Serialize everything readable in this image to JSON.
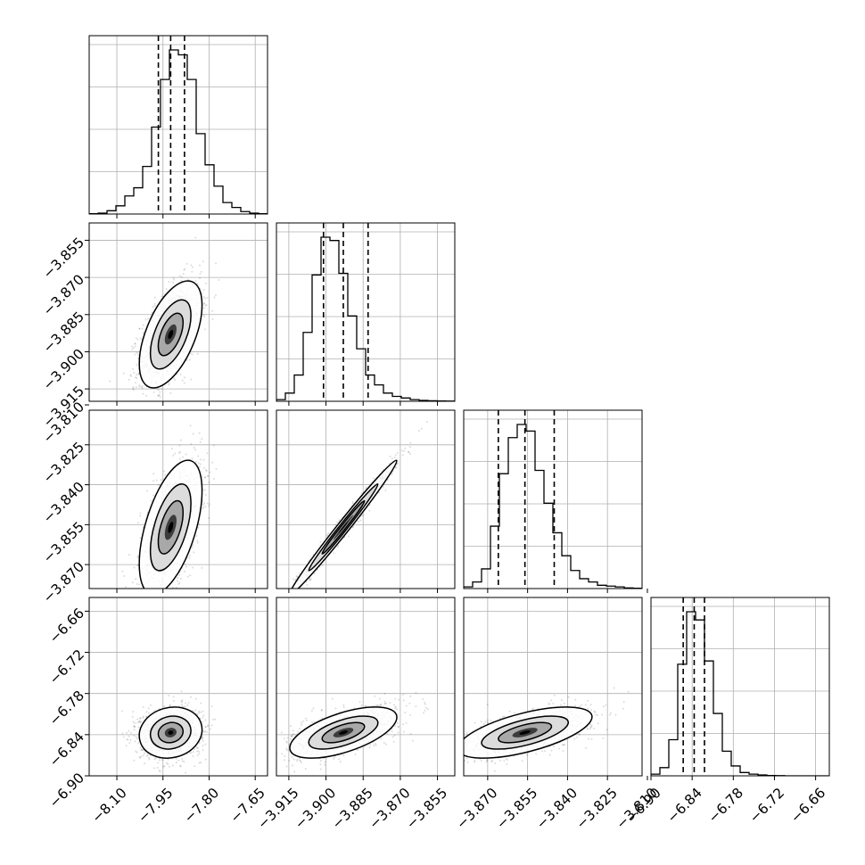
{
  "chart_data": {
    "type": "corner",
    "parameters": [
      {
        "ticks": [
          -8.1,
          -7.95,
          -7.8,
          -7.65
        ],
        "tick_labels": [
          "−8.10",
          "−7.95",
          "−7.80",
          "−7.65"
        ],
        "range": [
          -8.19,
          -7.61
        ]
      },
      {
        "ticks": [
          -3.915,
          -3.9,
          -3.885,
          -3.87,
          -3.855
        ],
        "tick_labels": [
          "−3.915",
          "−3.900",
          "−3.885",
          "−3.870",
          "−3.855"
        ],
        "range": [
          -3.92,
          -3.848
        ]
      },
      {
        "ticks": [
          -3.87,
          -3.855,
          -3.84,
          -3.825,
          -3.81
        ],
        "tick_labels": [
          "−3.870",
          "−3.855",
          "−3.840",
          "−3.825",
          "−3.810"
        ],
        "range": [
          -3.879,
          -3.812
        ]
      },
      {
        "ticks": [
          -6.9,
          -6.84,
          -6.78,
          -6.72,
          -6.66
        ],
        "tick_labels": [
          "−6.90",
          "−6.84",
          "−6.78",
          "−6.72",
          "−6.66"
        ],
        "range": [
          -6.9,
          -6.64
        ]
      }
    ],
    "quantiles": [
      [
        -7.965,
        -7.925,
        -7.88
      ],
      [
        -3.901,
        -3.893,
        -3.883
      ],
      [
        -3.866,
        -3.856,
        -3.845
      ],
      [
        -6.853,
        -6.837,
        -6.822
      ]
    ],
    "histograms": [
      [
        0.2,
        0.5,
        2,
        5,
        11,
        16,
        29,
        53,
        82,
        100,
        97,
        82,
        49,
        30,
        17,
        7,
        4,
        1.5,
        0.5,
        0.2
      ],
      [
        1,
        5,
        16,
        42,
        77,
        100,
        98,
        78,
        52,
        32,
        16,
        10,
        5,
        3,
        2,
        1,
        0.5,
        0.3,
        0.2,
        0.1
      ],
      [
        1,
        4,
        12,
        38,
        70,
        92,
        100,
        96,
        72,
        52,
        34,
        20,
        11,
        6,
        4,
        2,
        1.5,
        1,
        0.4,
        0.2
      ],
      [
        1,
        5,
        22,
        68,
        100,
        95,
        70,
        38,
        15,
        6,
        2,
        1,
        0.5,
        0.2,
        0.1,
        0,
        0,
        0,
        0,
        0
      ]
    ],
    "correlations": [
      [
        1,
        0.55,
        0.55,
        0.12
      ],
      [
        0.55,
        1,
        0.99,
        0.6
      ],
      [
        0.55,
        0.99,
        1,
        0.62
      ],
      [
        0.12,
        0.6,
        0.62,
        1
      ]
    ],
    "grid": true,
    "ticks_shown": "bottom row and left column"
  }
}
